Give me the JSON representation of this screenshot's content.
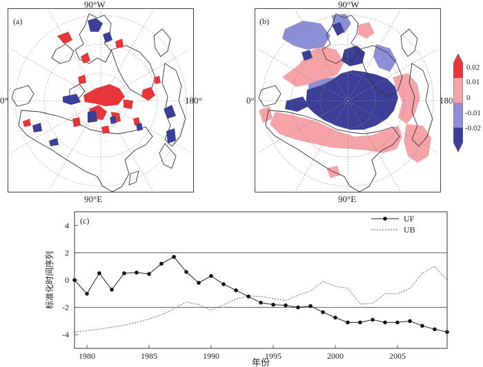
{
  "maps": [
    {
      "tag": "(a)",
      "label_top": "90°W",
      "label_bottom": "90°E",
      "label_left": "0°",
      "label_right": "180°"
    },
    {
      "tag": "(b)",
      "label_top": "90°W",
      "label_bottom": "90°E",
      "label_left": "0°",
      "label_right": "180°"
    }
  ],
  "colorbar": {
    "ticks": [
      "0.02",
      "0.01",
      "0",
      "-0.01",
      "-0.02"
    ],
    "colors": {
      "strong_pos": "#e8353a",
      "weak_pos": "#f6a3a8",
      "weak_neg": "#8c8fd6",
      "strong_neg": "#3c3f98"
    }
  },
  "chart_data": {
    "type": "line",
    "tag": "(c)",
    "xlabel": "年份",
    "ylabel": "标准化时间序列",
    "xlim": [
      1979,
      2009
    ],
    "ylim": [
      -5,
      5
    ],
    "xticks": [
      1980,
      1985,
      1990,
      1995,
      2000,
      2005
    ],
    "yticks": [
      4,
      2,
      0,
      -2,
      -4
    ],
    "reference_lines": [
      2,
      -2
    ],
    "grid": false,
    "legend": "top-right",
    "x": [
      1979,
      1980,
      1981,
      1982,
      1983,
      1984,
      1985,
      1986,
      1987,
      1988,
      1989,
      1990,
      1991,
      1992,
      1993,
      1994,
      1995,
      1996,
      1997,
      1998,
      1999,
      2000,
      2001,
      2002,
      2003,
      2004,
      2005,
      2006,
      2007,
      2008,
      2009
    ],
    "series": [
      {
        "name": "UF",
        "style": "solid-dots",
        "values": [
          0.0,
          -1.0,
          0.5,
          -0.7,
          0.5,
          0.55,
          0.45,
          1.2,
          1.7,
          0.6,
          -0.2,
          0.3,
          -0.3,
          -0.75,
          -1.2,
          -1.65,
          -1.8,
          -1.85,
          -2.0,
          -1.9,
          -2.35,
          -2.75,
          -3.1,
          -3.1,
          -2.9,
          -3.1,
          -3.1,
          -3.0,
          -3.35,
          -3.6,
          -3.8
        ]
      },
      {
        "name": "UB",
        "style": "dashed",
        "values": [
          -3.8,
          -3.7,
          -3.6,
          -3.45,
          -3.3,
          -3.1,
          -2.85,
          -2.55,
          -2.1,
          -1.6,
          -1.8,
          -2.2,
          -1.8,
          -1.4,
          -1.15,
          -1.2,
          -1.35,
          -1.5,
          -1.1,
          -0.8,
          -0.1,
          -0.45,
          -0.6,
          -1.75,
          -1.7,
          -1.0,
          -1.0,
          -0.6,
          0.5,
          1.0,
          0.0
        ]
      }
    ]
  }
}
